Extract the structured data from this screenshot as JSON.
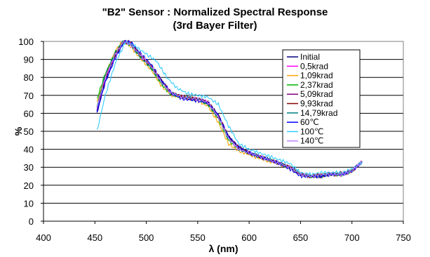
{
  "chart_data": {
    "type": "line",
    "title_line1": "\"B2\" Sensor : Normalized Spectral Response",
    "title_line2": "(3rd Bayer Filter)",
    "xlabel": "λ (nm)",
    "ylabel": "%",
    "xlim": [
      400,
      750
    ],
    "ylim": [
      0,
      100
    ],
    "xticks": [
      400,
      450,
      500,
      550,
      600,
      650,
      700,
      750
    ],
    "yticks": [
      0,
      10,
      20,
      30,
      40,
      50,
      60,
      70,
      80,
      90,
      100
    ],
    "grid": "horizontal",
    "legend_position": "right",
    "series": [
      {
        "name": "Initial",
        "color": "#000080",
        "points": [
          [
            452,
            60
          ],
          [
            460,
            78
          ],
          [
            470,
            92
          ],
          [
            478,
            100
          ],
          [
            485,
            99
          ],
          [
            495,
            92
          ],
          [
            505,
            86
          ],
          [
            515,
            78
          ],
          [
            525,
            71
          ],
          [
            535,
            69
          ],
          [
            550,
            68
          ],
          [
            560,
            66
          ],
          [
            570,
            59
          ],
          [
            580,
            47
          ],
          [
            590,
            41
          ],
          [
            600,
            38
          ],
          [
            610,
            36
          ],
          [
            620,
            34
          ],
          [
            630,
            32
          ],
          [
            640,
            30
          ],
          [
            650,
            26
          ],
          [
            660,
            25
          ],
          [
            670,
            25
          ],
          [
            680,
            26
          ],
          [
            690,
            26
          ],
          [
            700,
            28
          ],
          [
            710,
            33
          ]
        ]
      },
      {
        "name": "0,5krad",
        "color": "#ff00ff",
        "points": [
          [
            452,
            62
          ],
          [
            460,
            79
          ],
          [
            470,
            93
          ],
          [
            478,
            100
          ],
          [
            485,
            99
          ],
          [
            495,
            91
          ],
          [
            505,
            86
          ],
          [
            515,
            77
          ],
          [
            525,
            71
          ],
          [
            535,
            69
          ],
          [
            550,
            68
          ],
          [
            560,
            66
          ],
          [
            570,
            58
          ],
          [
            580,
            46
          ],
          [
            590,
            40
          ],
          [
            600,
            38
          ],
          [
            610,
            36
          ],
          [
            620,
            34
          ],
          [
            630,
            32
          ],
          [
            640,
            30
          ],
          [
            650,
            26
          ],
          [
            660,
            25
          ],
          [
            670,
            26
          ],
          [
            680,
            26
          ],
          [
            690,
            26
          ],
          [
            700,
            28
          ],
          [
            710,
            33
          ]
        ]
      },
      {
        "name": "1,09krad",
        "color": "#ffa500",
        "points": [
          [
            452,
            66
          ],
          [
            460,
            81
          ],
          [
            470,
            95
          ],
          [
            477,
            100
          ],
          [
            485,
            97
          ],
          [
            495,
            90
          ],
          [
            505,
            84
          ],
          [
            515,
            75
          ],
          [
            525,
            70
          ],
          [
            535,
            69
          ],
          [
            550,
            67
          ],
          [
            560,
            64
          ],
          [
            570,
            55
          ],
          [
            580,
            43
          ],
          [
            590,
            39
          ],
          [
            600,
            37
          ],
          [
            610,
            35
          ],
          [
            620,
            33
          ],
          [
            630,
            32
          ],
          [
            640,
            29
          ],
          [
            650,
            26
          ],
          [
            660,
            25
          ],
          [
            670,
            25
          ],
          [
            680,
            26
          ],
          [
            690,
            26
          ],
          [
            700,
            28
          ],
          [
            710,
            33
          ]
        ]
      },
      {
        "name": "2,37krad",
        "color": "#00b000",
        "points": [
          [
            452,
            68
          ],
          [
            460,
            82
          ],
          [
            470,
            94
          ],
          [
            477,
            100
          ],
          [
            485,
            98
          ],
          [
            495,
            91
          ],
          [
            505,
            85
          ],
          [
            515,
            76
          ],
          [
            525,
            70
          ],
          [
            535,
            69
          ],
          [
            550,
            68
          ],
          [
            560,
            65
          ],
          [
            570,
            57
          ],
          [
            580,
            45
          ],
          [
            590,
            40
          ],
          [
            600,
            38
          ],
          [
            610,
            36
          ],
          [
            620,
            34
          ],
          [
            630,
            32
          ],
          [
            640,
            30
          ],
          [
            650,
            26
          ],
          [
            660,
            25
          ],
          [
            670,
            26
          ],
          [
            680,
            26
          ],
          [
            690,
            26
          ],
          [
            700,
            28
          ],
          [
            710,
            33
          ]
        ]
      },
      {
        "name": "5,09krad",
        "color": "#800080",
        "points": [
          [
            452,
            62
          ],
          [
            460,
            80
          ],
          [
            470,
            93
          ],
          [
            478,
            100
          ],
          [
            485,
            98
          ],
          [
            495,
            92
          ],
          [
            505,
            86
          ],
          [
            515,
            78
          ],
          [
            525,
            71
          ],
          [
            535,
            69
          ],
          [
            550,
            68
          ],
          [
            560,
            66
          ],
          [
            570,
            58
          ],
          [
            580,
            47
          ],
          [
            590,
            41
          ],
          [
            600,
            38
          ],
          [
            610,
            36
          ],
          [
            620,
            34
          ],
          [
            630,
            32
          ],
          [
            640,
            30
          ],
          [
            650,
            26
          ],
          [
            660,
            25
          ],
          [
            670,
            25
          ],
          [
            680,
            26
          ],
          [
            690,
            26
          ],
          [
            700,
            28
          ],
          [
            710,
            33
          ]
        ]
      },
      {
        "name": "9,93krad",
        "color": "#8b0000",
        "points": [
          [
            452,
            63
          ],
          [
            460,
            80
          ],
          [
            470,
            93
          ],
          [
            478,
            100
          ],
          [
            485,
            99
          ],
          [
            495,
            92
          ],
          [
            505,
            86
          ],
          [
            515,
            78
          ],
          [
            525,
            71
          ],
          [
            535,
            69
          ],
          [
            550,
            68
          ],
          [
            560,
            66
          ],
          [
            570,
            59
          ],
          [
            580,
            47
          ],
          [
            590,
            41
          ],
          [
            600,
            38
          ],
          [
            610,
            36
          ],
          [
            620,
            34
          ],
          [
            630,
            32
          ],
          [
            640,
            30
          ],
          [
            650,
            26
          ],
          [
            660,
            25
          ],
          [
            670,
            26
          ],
          [
            680,
            26
          ],
          [
            690,
            27
          ],
          [
            700,
            28
          ],
          [
            710,
            33
          ]
        ]
      },
      {
        "name": "14,79krad",
        "color": "#008080",
        "points": [
          [
            452,
            64
          ],
          [
            460,
            81
          ],
          [
            470,
            94
          ],
          [
            478,
            100
          ],
          [
            485,
            98
          ],
          [
            495,
            91
          ],
          [
            505,
            85
          ],
          [
            515,
            77
          ],
          [
            525,
            71
          ],
          [
            535,
            69
          ],
          [
            550,
            68
          ],
          [
            560,
            65
          ],
          [
            570,
            58
          ],
          [
            580,
            46
          ],
          [
            590,
            40
          ],
          [
            600,
            38
          ],
          [
            610,
            36
          ],
          [
            620,
            34
          ],
          [
            630,
            32
          ],
          [
            640,
            30
          ],
          [
            650,
            26
          ],
          [
            660,
            25
          ],
          [
            670,
            25
          ],
          [
            680,
            26
          ],
          [
            690,
            26
          ],
          [
            700,
            28
          ],
          [
            710,
            33
          ]
        ]
      },
      {
        "name": "60℃",
        "color": "#0000ff",
        "points": [
          [
            452,
            61
          ],
          [
            460,
            77
          ],
          [
            470,
            91
          ],
          [
            479,
            100
          ],
          [
            486,
            99
          ],
          [
            495,
            93
          ],
          [
            505,
            87
          ],
          [
            515,
            78
          ],
          [
            525,
            71
          ],
          [
            535,
            68
          ],
          [
            550,
            67
          ],
          [
            560,
            66
          ],
          [
            570,
            59
          ],
          [
            580,
            47
          ],
          [
            590,
            41
          ],
          [
            600,
            38
          ],
          [
            610,
            36
          ],
          [
            620,
            34
          ],
          [
            630,
            32
          ],
          [
            640,
            29
          ],
          [
            650,
            25
          ],
          [
            660,
            25
          ],
          [
            670,
            25
          ],
          [
            680,
            26
          ],
          [
            690,
            26
          ],
          [
            700,
            28
          ],
          [
            710,
            33
          ]
        ]
      },
      {
        "name": "100℃",
        "color": "#33ccff",
        "points": [
          [
            452,
            50
          ],
          [
            460,
            70
          ],
          [
            470,
            88
          ],
          [
            480,
            100
          ],
          [
            490,
            97
          ],
          [
            500,
            93
          ],
          [
            510,
            89
          ],
          [
            520,
            80
          ],
          [
            530,
            74
          ],
          [
            540,
            71
          ],
          [
            550,
            70
          ],
          [
            560,
            69
          ],
          [
            570,
            65
          ],
          [
            580,
            53
          ],
          [
            590,
            43
          ],
          [
            600,
            40
          ],
          [
            610,
            38
          ],
          [
            620,
            36
          ],
          [
            630,
            34
          ],
          [
            640,
            32
          ],
          [
            650,
            27
          ],
          [
            660,
            26
          ],
          [
            670,
            27
          ],
          [
            680,
            27
          ],
          [
            690,
            27
          ],
          [
            700,
            29
          ],
          [
            710,
            33
          ]
        ]
      },
      {
        "name": "140℃",
        "color": "#c080ff",
        "points": [
          [
            452,
            63
          ],
          [
            460,
            80
          ],
          [
            470,
            93
          ],
          [
            478,
            100
          ],
          [
            485,
            98
          ],
          [
            495,
            92
          ],
          [
            505,
            86
          ],
          [
            515,
            77
          ],
          [
            525,
            71
          ],
          [
            535,
            69
          ],
          [
            550,
            68
          ],
          [
            560,
            66
          ],
          [
            570,
            58
          ],
          [
            580,
            46
          ],
          [
            590,
            40
          ],
          [
            600,
            38
          ],
          [
            610,
            36
          ],
          [
            620,
            34
          ],
          [
            630,
            32
          ],
          [
            640,
            30
          ],
          [
            650,
            26
          ],
          [
            660,
            25
          ],
          [
            670,
            26
          ],
          [
            680,
            26
          ],
          [
            690,
            26
          ],
          [
            700,
            28
          ],
          [
            710,
            33
          ]
        ]
      }
    ]
  }
}
